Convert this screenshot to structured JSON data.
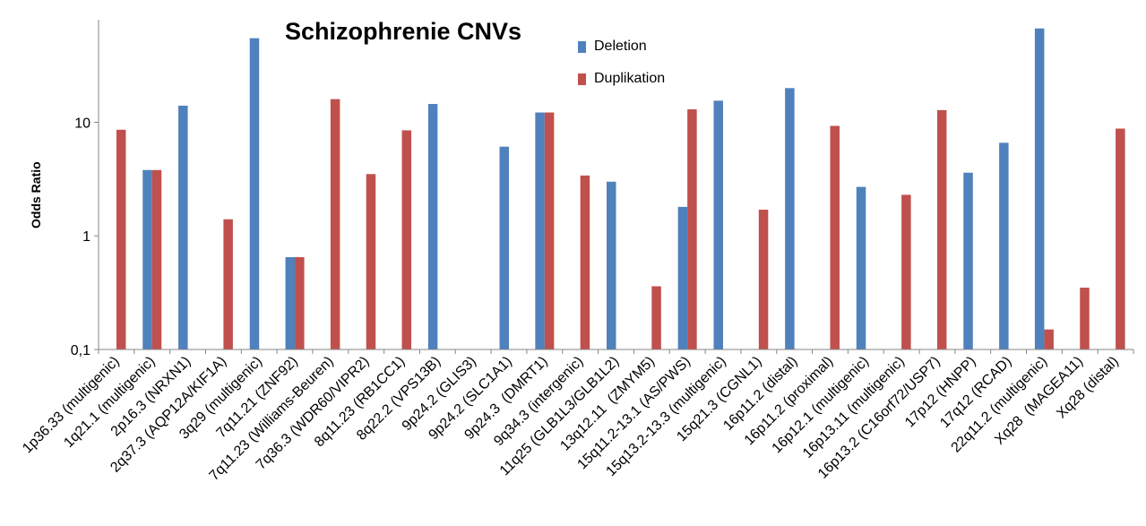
{
  "chart_data": {
    "type": "bar",
    "title": "Schizophrenie CNVs",
    "ylabel": "Odds Ratio",
    "xlabel": "",
    "yscale": "log",
    "ylim": [
      0.1,
      80
    ],
    "yticks": [
      0.1,
      1,
      10
    ],
    "ytick_labels": [
      "0,1",
      "1",
      "10"
    ],
    "grid": false,
    "legend_position": "top-center",
    "categories": [
      "1p36.33 (multigenic)",
      "1q21.1 (multigenic)",
      "2p16.3 (NRXN1)",
      "2q37.3 (AQP12A/KIF1A)",
      "3q29 (multigenic)",
      "7q11.21 (ZNF92)",
      "7q11.23 (Williams-Beuren)",
      "7q36.3 (WDR60/VIPR2)",
      "8q11.23 (RB1CC1)",
      "8q22.2 (VPS13B)",
      "9p24.2 (GLIS3)",
      "9p24.2 (SLC1A1)",
      "9p24.3  (DMRT1)",
      "9q34.3 (intergenic)",
      "11q25 (GLB1L3/GLB1L2)",
      "13q12.11  (ZMYM5)",
      "15q11.2-13.1 (AS/PWS)",
      "15q13.2-13.3 (multigenic)",
      "15q21.3 (CGNL1)",
      "16p11.2 (distal)",
      "16p11.2 (proximal)",
      "16p12.1 (multigenic)",
      "16p13.11 (multigenic)",
      "16p13.2 (C16orf72/USP7)",
      "17p12 (HNPP)",
      "17q12 (RCAD)",
      "22q11.2 (multigenic)",
      "Xq28  (MAGEA11)",
      "Xq28 (distal)"
    ],
    "series": [
      {
        "name": "Deletion",
        "color": "#4f81bd",
        "values": [
          null,
          3.8,
          14,
          null,
          55,
          0.65,
          null,
          null,
          null,
          14.5,
          null,
          6.1,
          12.2,
          null,
          3.0,
          null,
          1.8,
          15.5,
          null,
          20,
          null,
          2.7,
          null,
          null,
          3.6,
          6.6,
          67,
          null,
          null
        ]
      },
      {
        "name": "Duplikation",
        "color": "#c0504d",
        "values": [
          8.6,
          3.8,
          null,
          1.4,
          null,
          0.65,
          16,
          3.5,
          8.5,
          null,
          null,
          null,
          12.2,
          3.4,
          null,
          0.36,
          13,
          null,
          1.7,
          null,
          9.3,
          null,
          2.3,
          12.8,
          null,
          null,
          0.15,
          0.35,
          8.8
        ]
      }
    ]
  }
}
